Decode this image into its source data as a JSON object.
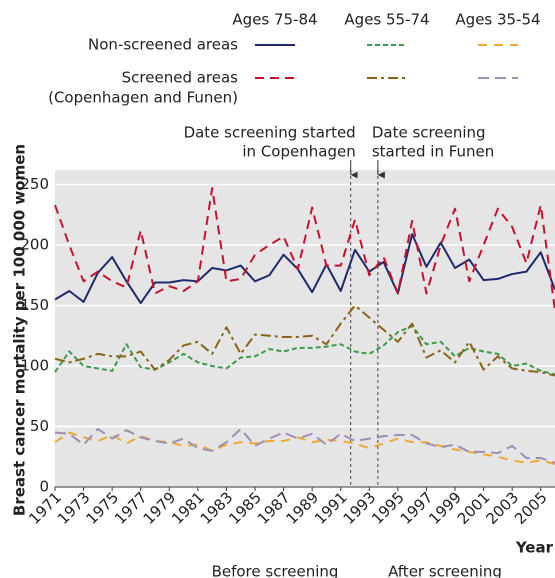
{
  "chart_data": {
    "type": "line",
    "y_label": "Breast cancer mortality per 100 000 women",
    "x_label": "Year",
    "legend": {
      "columns": [
        "Ages 75-84",
        "Ages 55-74",
        "Ages 35-54"
      ],
      "rows": [
        [
          "Non-screened areas"
        ],
        [
          "Screened areas",
          "(Copenhagen and Funen)"
        ]
      ]
    },
    "x": [
      1971,
      1972,
      1973,
      1974,
      1975,
      1976,
      1977,
      1978,
      1979,
      1980,
      1981,
      1982,
      1983,
      1984,
      1985,
      1986,
      1987,
      1988,
      1989,
      1990,
      1991,
      1992,
      1993,
      1994,
      1995,
      1996,
      1997,
      1998,
      1999,
      2000,
      2001,
      2002,
      2003,
      2004,
      2005,
      2006
    ],
    "series": [
      {
        "color": "#1f2a6e",
        "values": [
          155,
          162,
          153,
          177,
          190,
          170,
          152,
          169,
          169,
          171,
          170,
          181,
          179,
          183,
          170,
          175,
          192,
          180,
          161,
          184,
          162,
          196,
          178,
          186,
          160,
          209,
          182,
          202,
          181,
          188,
          171,
          172,
          176,
          178,
          194,
          163
        ]
      },
      {
        "color": "#3a9b4a",
        "values": [
          95,
          112,
          100,
          98,
          96,
          118,
          99,
          97,
          103,
          110,
          103,
          100,
          98,
          107,
          108,
          114,
          112,
          115,
          115,
          116,
          118,
          112,
          110,
          117,
          128,
          133,
          118,
          120,
          108,
          115,
          112,
          110,
          100,
          102,
          96,
          93
        ]
      },
      {
        "color": "#f0a830",
        "values": [
          37,
          45,
          41,
          38,
          43,
          36,
          42,
          38,
          37,
          34,
          35,
          30,
          35,
          37,
          36,
          38,
          38,
          41,
          37,
          39,
          38,
          36,
          32,
          36,
          40,
          37,
          37,
          34,
          31,
          29,
          27,
          25,
          22,
          20,
          22,
          19
        ]
      },
      {
        "color": "#c8102e",
        "values": [
          233,
          200,
          170,
          178,
          170,
          165,
          212,
          160,
          166,
          162,
          170,
          247,
          170,
          172,
          192,
          200,
          207,
          180,
          231,
          183,
          183,
          221,
          175,
          190,
          160,
          220,
          160,
          200,
          230,
          170,
          200,
          230,
          215,
          185,
          233,
          146
        ]
      },
      {
        "color": "#8a6414",
        "values": [
          106,
          103,
          106,
          110,
          108,
          108,
          112,
          97,
          105,
          117,
          120,
          110,
          132,
          110,
          126,
          125,
          124,
          124,
          125,
          118,
          135,
          150,
          140,
          130,
          120,
          135,
          107,
          113,
          103,
          120,
          97,
          108,
          98,
          96,
          95,
          92
        ]
      },
      {
        "color": "#9b8fb3",
        "values": [
          45,
          44,
          35,
          48,
          40,
          47,
          41,
          38,
          36,
          40,
          32,
          30,
          37,
          48,
          34,
          40,
          45,
          40,
          44,
          35,
          44,
          38,
          40,
          42,
          43,
          43,
          36,
          33,
          35,
          29,
          29,
          28,
          34,
          24,
          24,
          20
        ]
      }
    ],
    "xlim": [
      1971,
      2006
    ],
    "xticks": [
      1971,
      1973,
      1975,
      1977,
      1979,
      1981,
      1983,
      1985,
      1987,
      1989,
      1991,
      1993,
      1995,
      1997,
      1999,
      2001,
      2003,
      2005
    ],
    "ylim": [
      0,
      262
    ],
    "yticks": [
      0,
      50,
      100,
      150,
      200,
      250
    ],
    "grid": true,
    "annotations": [
      {
        "x": 1991.7,
        "text": [
          "Date screening started",
          "in Copenhagen"
        ]
      },
      {
        "x": 1993.6,
        "text": [
          "Date screening",
          "started in Funen"
        ]
      }
    ],
    "periods": [
      "Before screening",
      "After screening"
    ]
  }
}
